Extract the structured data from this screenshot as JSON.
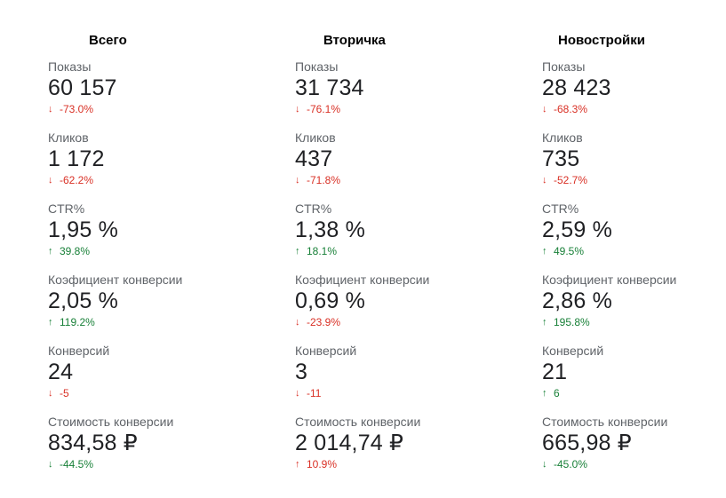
{
  "colors": {
    "negative": "#d93025",
    "positive": "#188038"
  },
  "icons": {
    "up": "arrow-up-icon",
    "down": "arrow-down-icon"
  },
  "columns": [
    {
      "title": "Всего",
      "metrics": [
        {
          "label": "Показы",
          "value": "60 157",
          "delta": "-73.0%",
          "dir": "down",
          "tone": "red"
        },
        {
          "label": "Кликов",
          "value": "1 172",
          "delta": "-62.2%",
          "dir": "down",
          "tone": "red"
        },
        {
          "label": "CTR%",
          "value": "1,95 %",
          "delta": "39.8%",
          "dir": "up",
          "tone": "green"
        },
        {
          "label": "Коэфициент конверсии",
          "value": "2,05 %",
          "delta": "119.2%",
          "dir": "up",
          "tone": "green"
        },
        {
          "label": "Конверсий",
          "value": "24",
          "delta": "-5",
          "dir": "down",
          "tone": "red"
        },
        {
          "label": "Стоимость конверсии",
          "value": "834,58 ₽",
          "delta": "-44.5%",
          "dir": "down",
          "tone": "green"
        }
      ]
    },
    {
      "title": "Вторичка",
      "metrics": [
        {
          "label": "Показы",
          "value": "31 734",
          "delta": "-76.1%",
          "dir": "down",
          "tone": "red"
        },
        {
          "label": "Кликов",
          "value": "437",
          "delta": "-71.8%",
          "dir": "down",
          "tone": "red"
        },
        {
          "label": "CTR%",
          "value": "1,38 %",
          "delta": "18.1%",
          "dir": "up",
          "tone": "green"
        },
        {
          "label": "Коэфициент конверсии",
          "value": "0,69 %",
          "delta": "-23.9%",
          "dir": "down",
          "tone": "red"
        },
        {
          "label": "Конверсий",
          "value": "3",
          "delta": "-11",
          "dir": "down",
          "tone": "red"
        },
        {
          "label": "Стоимость конверсии",
          "value": "2 014,74 ₽",
          "delta": "10.9%",
          "dir": "up",
          "tone": "red"
        }
      ]
    },
    {
      "title": "Новостройки",
      "metrics": [
        {
          "label": "Показы",
          "value": "28 423",
          "delta": "-68.3%",
          "dir": "down",
          "tone": "red"
        },
        {
          "label": "Кликов",
          "value": "735",
          "delta": "-52.7%",
          "dir": "down",
          "tone": "red"
        },
        {
          "label": "CTR%",
          "value": "2,59 %",
          "delta": "49.5%",
          "dir": "up",
          "tone": "green"
        },
        {
          "label": "Коэфициент конверсии",
          "value": "2,86 %",
          "delta": "195.8%",
          "dir": "up",
          "tone": "green"
        },
        {
          "label": "Конверсий",
          "value": "21",
          "delta": "6",
          "dir": "up",
          "tone": "green"
        },
        {
          "label": "Стоимость конверсии",
          "value": "665,98 ₽",
          "delta": "-45.0%",
          "dir": "down",
          "tone": "green"
        }
      ]
    }
  ]
}
